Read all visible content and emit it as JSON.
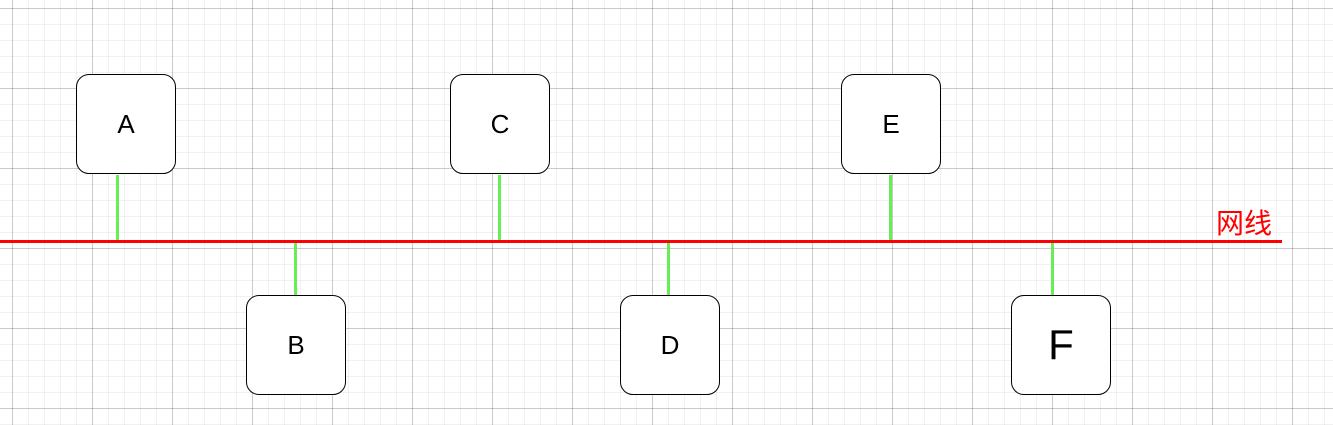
{
  "diagram": {
    "bus": {
      "label": "网线",
      "color": "#ff0000"
    },
    "connector_color": "#66ee55",
    "nodes": [
      {
        "id": "a",
        "label": "A"
      },
      {
        "id": "b",
        "label": "B"
      },
      {
        "id": "c",
        "label": "C"
      },
      {
        "id": "d",
        "label": "D"
      },
      {
        "id": "e",
        "label": "E"
      },
      {
        "id": "f",
        "label": "F"
      }
    ]
  }
}
